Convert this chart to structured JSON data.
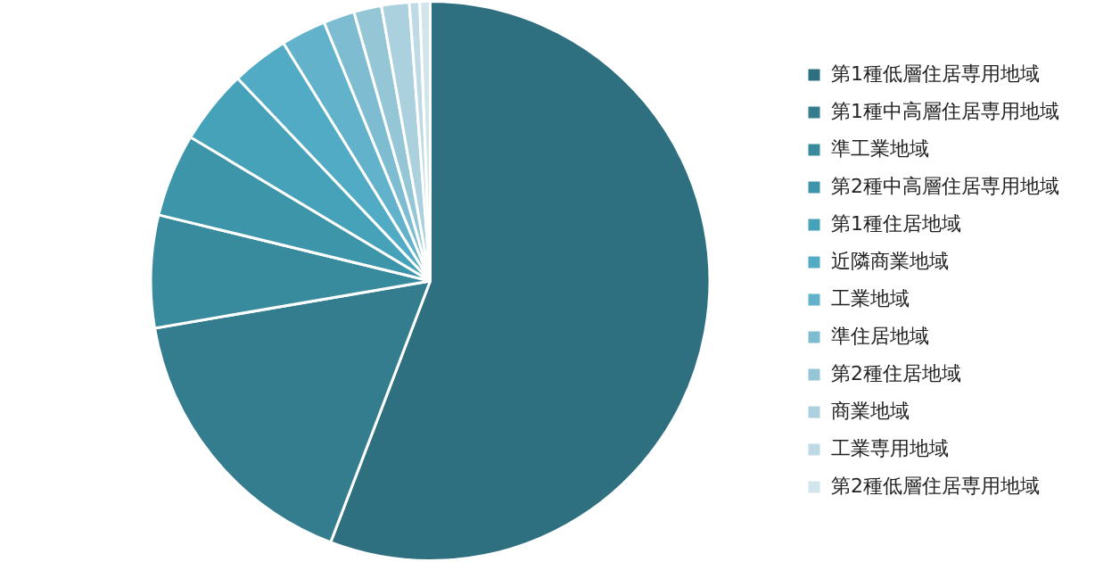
{
  "chart_data": {
    "type": "pie",
    "categories": [
      "第1種低層住居専用地域",
      "第1種中高層住居専用地域",
      "準工業地域",
      "第2種中高層住居専用地域",
      "第1種住居地域",
      "近隣商業地域",
      "工業地域",
      "準住居地域",
      "第2種住居地域",
      "商業地域",
      "工業専用地域",
      "第2種低層住居専用地域"
    ],
    "values": [
      55.8,
      16.5,
      6.5,
      4.8,
      4.3,
      3.3,
      2.6,
      1.8,
      1.6,
      1.6,
      0.6,
      0.6
    ],
    "colors": [
      "#2e6f80",
      "#337d8f",
      "#388a9d",
      "#3d95a9",
      "#45a2b9",
      "#52abc4",
      "#62b2cb",
      "#7ebdd1",
      "#95c6d6",
      "#abd0de",
      "#bedbe5",
      "#d0e5ec"
    ],
    "legend": "right"
  }
}
